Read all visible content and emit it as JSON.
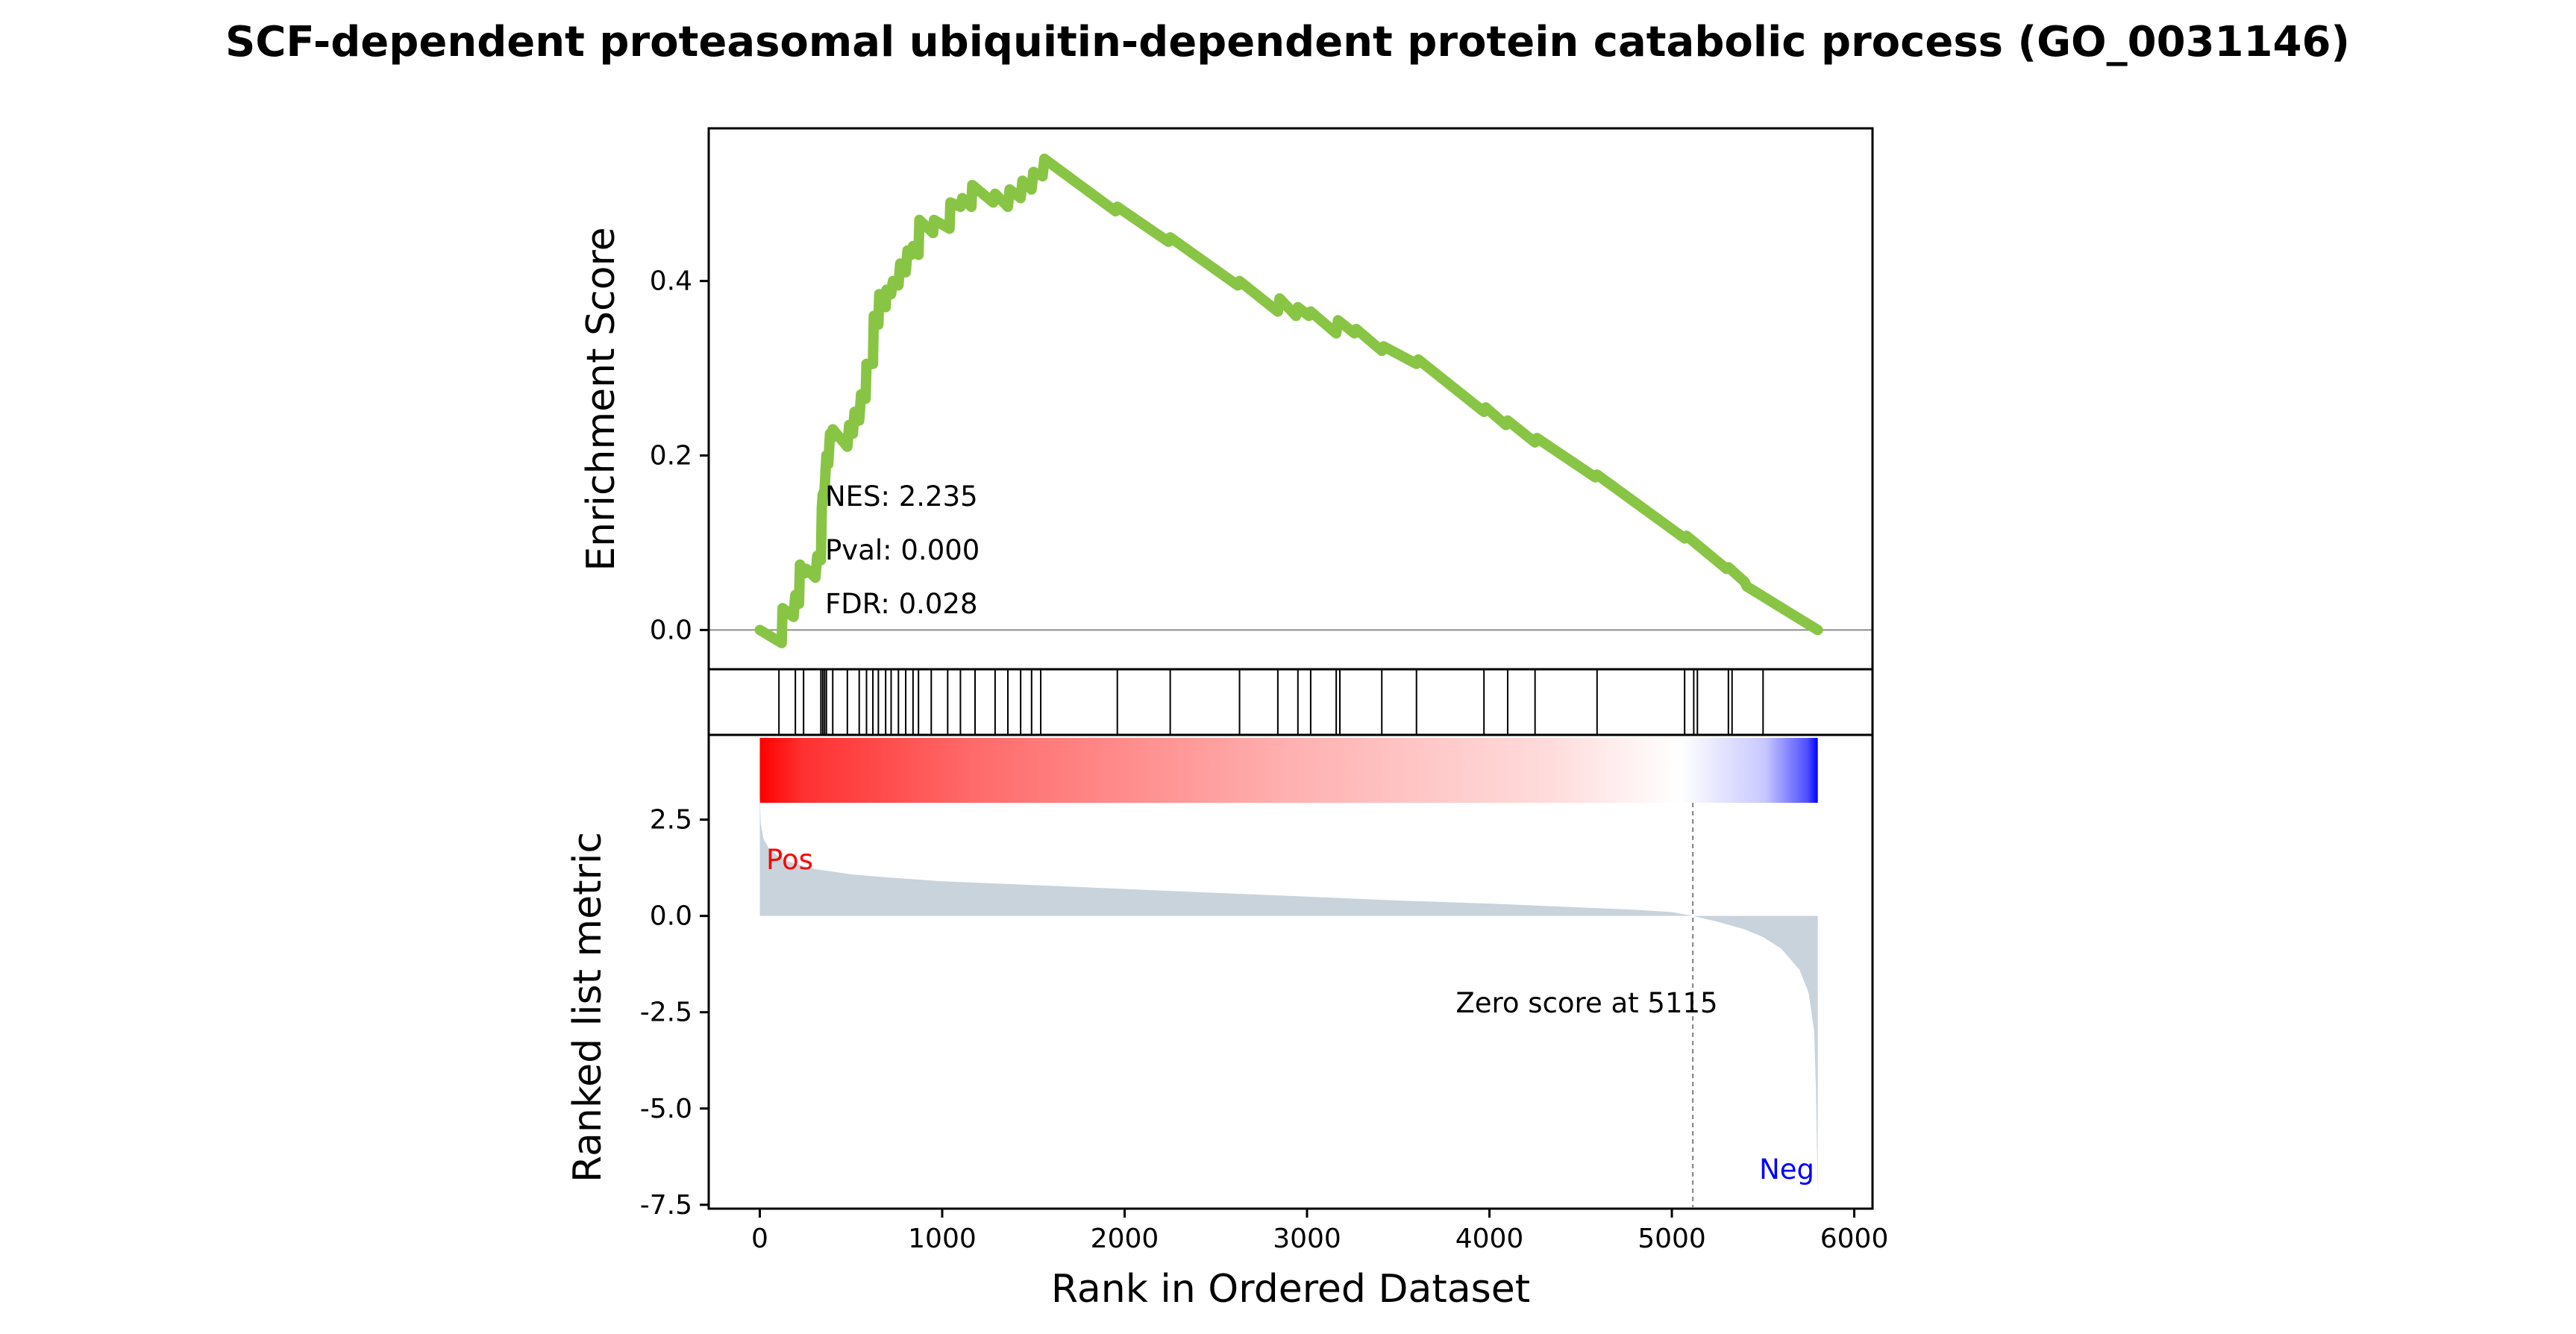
{
  "chart_data": {
    "type": "line",
    "title": "SCF-dependent proteasomal ubiquitin-dependent protein catabolic process (GO_0031146)",
    "xlabel": "Rank in Ordered Dataset",
    "xlim": [
      -280,
      6100
    ],
    "x_ticks": [
      0,
      1000,
      2000,
      3000,
      4000,
      5000,
      6000
    ],
    "enrichment": {
      "ylabel": "Enrichment Score",
      "ylim": [
        -0.045,
        0.575
      ],
      "y_ticks": [
        0.0,
        0.2,
        0.4
      ],
      "color": "#88c544",
      "series": {
        "x": [
          0,
          120,
          125,
          185,
          195,
          215,
          220,
          245,
          255,
          305,
          315,
          335,
          340,
          345,
          355,
          365,
          375,
          385,
          395,
          400,
          480,
          490,
          510,
          520,
          545,
          555,
          580,
          585,
          620,
          625,
          650,
          655,
          690,
          695,
          720,
          730,
          760,
          770,
          800,
          810,
          830,
          840,
          870,
          875,
          950,
          955,
          1040,
          1045,
          1100,
          1110,
          1160,
          1165,
          1280,
          1290,
          1360,
          1370,
          1430,
          1440,
          1490,
          1500,
          1550,
          1560,
          1950,
          1960,
          2240,
          2250,
          2620,
          2630,
          2840,
          2850,
          2940,
          2950,
          3010,
          3020,
          3160,
          3170,
          3260,
          3270,
          3410,
          3420,
          3600,
          3610,
          3970,
          3980,
          4090,
          4100,
          4250,
          4260,
          4580,
          4590,
          5070,
          5080,
          5300,
          5310,
          5400,
          5410,
          5800
        ],
        "y": [
          0.0,
          -0.015,
          0.025,
          0.015,
          0.04,
          0.03,
          0.075,
          0.065,
          0.07,
          0.06,
          0.085,
          0.08,
          0.14,
          0.155,
          0.16,
          0.2,
          0.19,
          0.225,
          0.22,
          0.23,
          0.21,
          0.235,
          0.225,
          0.25,
          0.24,
          0.27,
          0.265,
          0.305,
          0.305,
          0.36,
          0.35,
          0.385,
          0.37,
          0.39,
          0.385,
          0.4,
          0.395,
          0.42,
          0.41,
          0.435,
          0.43,
          0.44,
          0.43,
          0.47,
          0.455,
          0.47,
          0.46,
          0.49,
          0.485,
          0.495,
          0.485,
          0.51,
          0.49,
          0.5,
          0.485,
          0.505,
          0.495,
          0.515,
          0.505,
          0.525,
          0.52,
          0.54,
          0.48,
          0.485,
          0.445,
          0.45,
          0.395,
          0.4,
          0.365,
          0.38,
          0.36,
          0.37,
          0.36,
          0.365,
          0.34,
          0.355,
          0.34,
          0.345,
          0.32,
          0.325,
          0.305,
          0.31,
          0.25,
          0.255,
          0.235,
          0.24,
          0.215,
          0.22,
          0.175,
          0.178,
          0.105,
          0.108,
          0.07,
          0.072,
          0.055,
          0.05,
          0.0
        ]
      },
      "annotations": {
        "nes": "NES: 2.235",
        "pval": "Pval: 0.000",
        "fdr": "FDR: 0.028"
      }
    },
    "hits": {
      "positions": [
        105,
        195,
        240,
        335,
        345,
        355,
        365,
        400,
        480,
        545,
        585,
        620,
        650,
        690,
        720,
        760,
        800,
        840,
        870,
        940,
        1030,
        1100,
        1180,
        1290,
        1360,
        1430,
        1490,
        1540,
        1960,
        2250,
        2630,
        2840,
        2950,
        3020,
        3160,
        3180,
        3410,
        3600,
        3970,
        4100,
        4250,
        4590,
        5070,
        5120,
        5140,
        5310,
        5330,
        5500
      ]
    },
    "ranked_metric": {
      "ylabel": "Ranked list metric",
      "ylim": [
        -7.6,
        4.7
      ],
      "y_ticks": [
        2.5,
        0.0,
        -2.5,
        -5.0,
        -7.5
      ],
      "fill_color": "#c9d3dc",
      "curve": {
        "x": [
          0,
          5,
          20,
          50,
          100,
          150,
          200,
          300,
          400,
          500,
          700,
          1000,
          1500,
          2000,
          2500,
          3000,
          3500,
          4000,
          4500,
          4800,
          5000,
          5115,
          5250,
          5400,
          5500,
          5600,
          5700,
          5750,
          5780,
          5790,
          5800
        ],
        "y": [
          3.1,
          2.4,
          2.0,
          1.75,
          1.55,
          1.42,
          1.35,
          1.22,
          1.15,
          1.08,
          1.0,
          0.9,
          0.8,
          0.7,
          0.6,
          0.5,
          0.4,
          0.32,
          0.22,
          0.16,
          0.1,
          0.0,
          -0.15,
          -0.35,
          -0.55,
          -0.85,
          -1.4,
          -2.0,
          -3.0,
          -4.5,
          -7.3
        ]
      },
      "pos_label": "Pos",
      "neg_label": "Neg",
      "zero_label": "Zero score at 5115",
      "zero_rank": 5115
    },
    "colorbar": {
      "start": 0,
      "end": 5800,
      "zero_rank": 5115,
      "pos_color": "#ff0000",
      "neg_color": "#0000ff"
    }
  }
}
